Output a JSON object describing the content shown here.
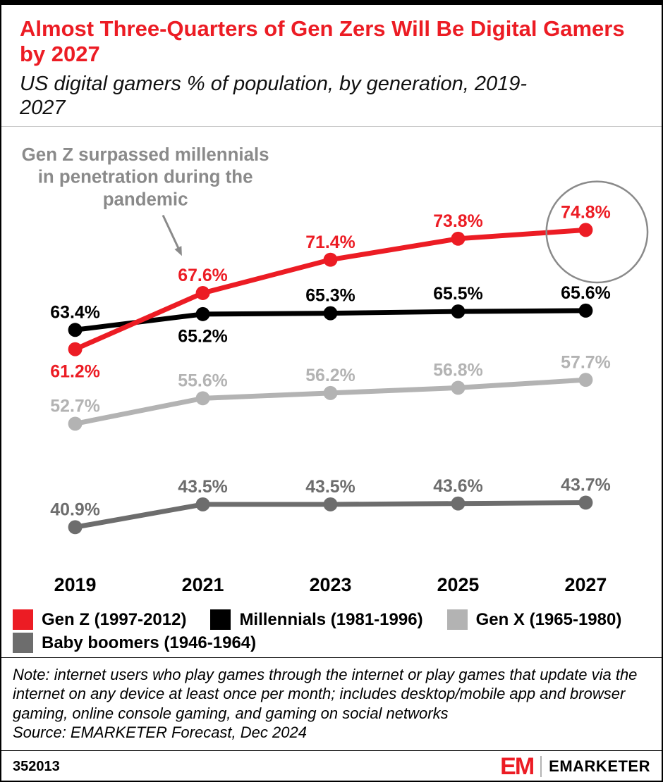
{
  "chart_data": {
    "type": "line",
    "title": "Almost Three-Quarters of Gen Zers Will Be Digital Gamers by 2027",
    "subtitle": "US digital gamers % of population, by generation, 2019-2027",
    "x": [
      "2019",
      "2021",
      "2023",
      "2025",
      "2027"
    ],
    "ylim": [
      38,
      80
    ],
    "unit": "%",
    "grid": false,
    "legend_position": "bottom",
    "series": [
      {
        "name": "Gen Z (1997-2012)",
        "color": "#ec1c24",
        "values": [
          61.2,
          67.6,
          71.4,
          73.8,
          74.8
        ],
        "label_positions": [
          "below",
          "above",
          "above",
          "above",
          "above"
        ]
      },
      {
        "name": "Millennials (1981-1996)",
        "color": "#000000",
        "values": [
          63.4,
          65.2,
          65.3,
          65.5,
          65.6
        ],
        "label_positions": [
          "above",
          "below",
          "above",
          "above",
          "above"
        ]
      },
      {
        "name": "Gen X (1965-1980)",
        "color": "#b3b3b3",
        "values": [
          52.7,
          55.6,
          56.2,
          56.8,
          57.7
        ],
        "label_positions": [
          "above",
          "above",
          "above",
          "above",
          "above"
        ]
      },
      {
        "name": "Baby boomers (1946-1964)",
        "color": "#6d6d6d",
        "values": [
          40.9,
          43.5,
          43.5,
          43.6,
          43.7
        ],
        "label_positions": [
          "above",
          "above",
          "above",
          "above",
          "above"
        ]
      }
    ],
    "annotation": {
      "lines": [
        "Gen Z surpassed millennials",
        "in penetration during the",
        "pandemic"
      ]
    },
    "highlight": {
      "series": "Gen Z (1997-2012)",
      "x": "2027",
      "label": "74.8%"
    }
  },
  "footnote": {
    "note": "Note: internet users who play games through the internet or play games that update via the internet on any device at least once per month; includes desktop/mobile app and browser gaming, online console gaming, and gaming on social networks",
    "source": "Source: EMARKETER Forecast, Dec 2024"
  },
  "footer": {
    "chart_id": "352013",
    "logo_monogram": "EM",
    "brand": "EMARKETER"
  }
}
